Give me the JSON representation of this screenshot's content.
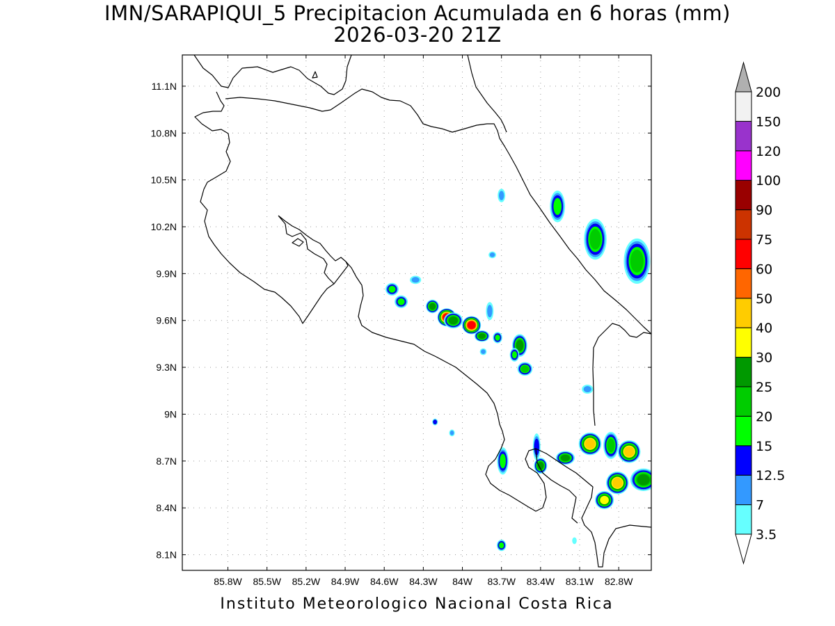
{
  "title": {
    "line1": "IMN/SARAPIQUI_5 Precipitacion Acumulada en 6 horas (mm)",
    "line2": "2026-03-20 21Z"
  },
  "credit": "Instituto Meteorologico Nacional Costa Rica",
  "axes": {
    "lon_range": [
      -86.15,
      -82.55
    ],
    "lat_range": [
      8.0,
      11.3
    ],
    "lon_ticks": [
      {
        "value": -85.8,
        "label": "85.8W"
      },
      {
        "value": -85.5,
        "label": "85.5W"
      },
      {
        "value": -85.2,
        "label": "85.2W"
      },
      {
        "value": -84.9,
        "label": "84.9W"
      },
      {
        "value": -84.6,
        "label": "84.6W"
      },
      {
        "value": -84.3,
        "label": "84.3W"
      },
      {
        "value": -84.0,
        "label": "84W"
      },
      {
        "value": -83.7,
        "label": "83.7W"
      },
      {
        "value": -83.4,
        "label": "83.4W"
      },
      {
        "value": -83.1,
        "label": "83.1W"
      },
      {
        "value": -82.8,
        "label": "82.8W"
      }
    ],
    "lat_ticks": [
      {
        "value": 8.1,
        "label": "8.1N"
      },
      {
        "value": 8.4,
        "label": "8.4N"
      },
      {
        "value": 8.7,
        "label": "8.7N"
      },
      {
        "value": 9.0,
        "label": "9N"
      },
      {
        "value": 9.3,
        "label": "9.3N"
      },
      {
        "value": 9.6,
        "label": "9.6N"
      },
      {
        "value": 9.9,
        "label": "9.9N"
      },
      {
        "value": 10.2,
        "label": "10.2N"
      },
      {
        "value": 10.5,
        "label": "10.5N"
      },
      {
        "value": 10.8,
        "label": "10.8N"
      },
      {
        "value": 11.1,
        "label": "11.1N"
      }
    ],
    "grid": "dotted"
  },
  "colorbar": {
    "levels": [
      "3.5",
      "7",
      "12.5",
      "15",
      "20",
      "25",
      "30",
      "40",
      "50",
      "60",
      "75",
      "90",
      "100",
      "120",
      "150",
      "200"
    ],
    "colors": [
      "#66ffff",
      "#3399ff",
      "#0000ff",
      "#00ff00",
      "#00cc00",
      "#009900",
      "#ffff00",
      "#ffcc00",
      "#ff6600",
      "#ff0000",
      "#cc3300",
      "#990000",
      "#ff00ff",
      "#9933cc",
      "#f2f2f2"
    ],
    "top_arrow_color": "#b0b0b0",
    "bottom_arrow_color": "#ffffff"
  },
  "precip_cells": [
    {
      "lon": -84.54,
      "lat": 9.8,
      "rx": 0.035,
      "ry": 0.028,
      "max_level": 4
    },
    {
      "lon": -84.47,
      "lat": 9.72,
      "rx": 0.035,
      "ry": 0.028,
      "max_level": 4
    },
    {
      "lon": -84.36,
      "lat": 9.86,
      "rx": 0.03,
      "ry": 0.018,
      "max_level": 2
    },
    {
      "lon": -84.23,
      "lat": 9.69,
      "rx": 0.035,
      "ry": 0.03,
      "max_level": 6
    },
    {
      "lon": -84.12,
      "lat": 9.62,
      "rx": 0.05,
      "ry": 0.04,
      "max_level": 10
    },
    {
      "lon": -84.07,
      "lat": 9.6,
      "rx": 0.05,
      "ry": 0.035,
      "max_level": 6
    },
    {
      "lon": -83.93,
      "lat": 9.57,
      "rx": 0.05,
      "ry": 0.04,
      "max_level": 10
    },
    {
      "lon": -83.85,
      "lat": 9.5,
      "rx": 0.04,
      "ry": 0.025,
      "max_level": 6
    },
    {
      "lon": -83.79,
      "lat": 9.66,
      "rx": 0.02,
      "ry": 0.04,
      "max_level": 2
    },
    {
      "lon": -83.73,
      "lat": 9.49,
      "rx": 0.025,
      "ry": 0.025,
      "max_level": 4
    },
    {
      "lon": -83.56,
      "lat": 9.44,
      "rx": 0.04,
      "ry": 0.05,
      "max_level": 6
    },
    {
      "lon": -83.6,
      "lat": 9.38,
      "rx": 0.025,
      "ry": 0.03,
      "max_level": 4
    },
    {
      "lon": -83.52,
      "lat": 9.29,
      "rx": 0.04,
      "ry": 0.03,
      "max_level": 5
    },
    {
      "lon": -83.84,
      "lat": 9.4,
      "rx": 0.018,
      "ry": 0.015,
      "max_level": 2
    },
    {
      "lon": -83.77,
      "lat": 10.02,
      "rx": 0.02,
      "ry": 0.015,
      "max_level": 2
    },
    {
      "lon": -83.7,
      "lat": 10.4,
      "rx": 0.02,
      "ry": 0.03,
      "max_level": 2
    },
    {
      "lon": -83.27,
      "lat": 10.33,
      "rx": 0.04,
      "ry": 0.07,
      "max_level": 4
    },
    {
      "lon": -82.98,
      "lat": 10.12,
      "rx": 0.06,
      "ry": 0.09,
      "max_level": 5
    },
    {
      "lon": -82.66,
      "lat": 9.98,
      "rx": 0.07,
      "ry": 0.1,
      "max_level": 5
    },
    {
      "lon": -83.04,
      "lat": 9.16,
      "rx": 0.03,
      "ry": 0.02,
      "max_level": 2
    },
    {
      "lon": -84.21,
      "lat": 8.95,
      "rx": 0.015,
      "ry": 0.015,
      "max_level": 3
    },
    {
      "lon": -84.08,
      "lat": 8.88,
      "rx": 0.015,
      "ry": 0.015,
      "max_level": 2
    },
    {
      "lon": -83.69,
      "lat": 8.7,
      "rx": 0.03,
      "ry": 0.06,
      "max_level": 4
    },
    {
      "lon": -83.43,
      "lat": 8.79,
      "rx": 0.02,
      "ry": 0.06,
      "max_level": 3
    },
    {
      "lon": -83.4,
      "lat": 8.67,
      "rx": 0.035,
      "ry": 0.035,
      "max_level": 6
    },
    {
      "lon": -83.21,
      "lat": 8.72,
      "rx": 0.05,
      "ry": 0.03,
      "max_level": 6
    },
    {
      "lon": -83.02,
      "lat": 8.81,
      "rx": 0.06,
      "ry": 0.05,
      "max_level": 8
    },
    {
      "lon": -82.86,
      "lat": 8.8,
      "rx": 0.04,
      "ry": 0.06,
      "max_level": 5
    },
    {
      "lon": -82.72,
      "lat": 8.76,
      "rx": 0.06,
      "ry": 0.05,
      "max_level": 8
    },
    {
      "lon": -82.81,
      "lat": 8.56,
      "rx": 0.06,
      "ry": 0.05,
      "max_level": 8
    },
    {
      "lon": -82.91,
      "lat": 8.45,
      "rx": 0.05,
      "ry": 0.04,
      "max_level": 7
    },
    {
      "lon": -82.61,
      "lat": 8.58,
      "rx": 0.07,
      "ry": 0.05,
      "max_level": 6
    },
    {
      "lon": -83.7,
      "lat": 8.16,
      "rx": 0.025,
      "ry": 0.025,
      "max_level": 4
    },
    {
      "lon": -83.14,
      "lat": 8.19,
      "rx": 0.012,
      "ry": 0.015,
      "max_level": 1
    }
  ]
}
